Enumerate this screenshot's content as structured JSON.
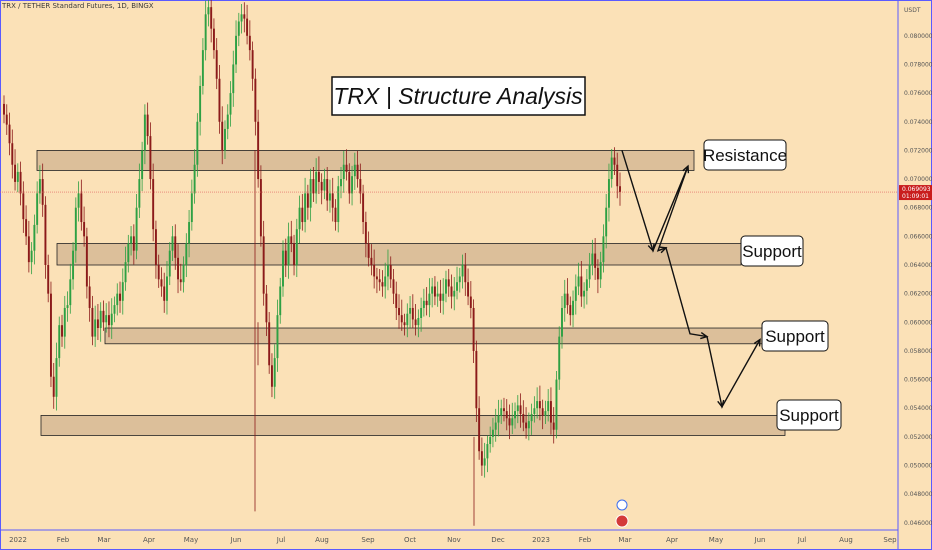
{
  "header": {
    "symbol_line": "TRX / TETHER Standard Futures, 1D, BINGX"
  },
  "colors": {
    "background": "#fbe1b7",
    "zone_fill": "#dcbf9a",
    "up_candle": "#2ea043",
    "down_candle": "#8b1a1a",
    "price_line": "#e05a5a",
    "price_badge": "#c91d1d",
    "frame": "#5a5aff"
  },
  "chart_data": {
    "type": "candlestick",
    "title": "TRX | Structure Analysis",
    "currency_label": "USDT",
    "ylim": [
      0.0455,
      0.0825
    ],
    "y_ticks": [
      "0.080000",
      "0.078000",
      "0.076000",
      "0.074000",
      "0.072000",
      "0.070000",
      "0.068000",
      "0.066000",
      "0.064000",
      "0.062000",
      "0.060000",
      "0.058000",
      "0.056000",
      "0.054000",
      "0.052000",
      "0.050000",
      "0.048000",
      "0.046000"
    ],
    "x_ticks": [
      "2022",
      "Feb",
      "Mar",
      "Apr",
      "May",
      "Jun",
      "Jul",
      "Aug",
      "Sep",
      "Oct",
      "Nov",
      "Dec",
      "2023",
      "Feb",
      "Mar",
      "Apr",
      "May",
      "Jun",
      "Jul",
      "Aug",
      "Sep"
    ],
    "current_price": {
      "value": 0.069093,
      "label": "0.069093",
      "countdown": "01:09:01"
    },
    "zones": [
      {
        "label": "Resistance",
        "from": 0.0706,
        "to": 0.072
      },
      {
        "label": "Support",
        "from": 0.064,
        "to": 0.0655
      },
      {
        "label": "Support",
        "from": 0.0585,
        "to": 0.0596
      },
      {
        "label": "Support",
        "from": 0.0521,
        "to": 0.0535
      }
    ],
    "projection_path": [
      0.072,
      0.065,
      0.0709,
      0.065,
      0.0652,
      0.0592,
      0.059,
      0.0541,
      0.0588
    ],
    "series": [
      {
        "values": [
          0.0745,
          0.0738,
          0.0725,
          0.071,
          0.0698,
          0.0705,
          0.069,
          0.0672,
          0.066,
          0.0642,
          0.065,
          0.0668,
          0.069,
          0.07,
          0.0682,
          0.064,
          0.062,
          0.0562,
          0.0548,
          0.0575,
          0.0598,
          0.059,
          0.061,
          0.0612,
          0.063,
          0.065,
          0.068,
          0.069,
          0.067,
          0.066,
          0.0625,
          0.061,
          0.059,
          0.0602,
          0.0596,
          0.0608,
          0.06,
          0.0605,
          0.0598,
          0.0606,
          0.0612,
          0.062,
          0.0615,
          0.0628,
          0.0642,
          0.0655,
          0.066,
          0.065,
          0.068,
          0.07,
          0.072,
          0.0745,
          0.073,
          0.07,
          0.0665,
          0.064,
          0.063,
          0.0625,
          0.0615,
          0.0632,
          0.065,
          0.066,
          0.0645,
          0.063,
          0.0628,
          0.064,
          0.0655,
          0.067,
          0.069,
          0.071,
          0.074,
          0.0765,
          0.079,
          0.0815,
          0.082,
          0.0805,
          0.079,
          0.077,
          0.074,
          0.072,
          0.0735,
          0.0745,
          0.076,
          0.078,
          0.08,
          0.081,
          0.0815,
          0.0812,
          0.08,
          0.079,
          0.077,
          0.074,
          0.07,
          0.066,
          0.062,
          0.06,
          0.057,
          0.0555,
          0.0575,
          0.0605,
          0.0625,
          0.065,
          0.064,
          0.066,
          0.0655,
          0.064,
          0.0665,
          0.068,
          0.067,
          0.069,
          0.068,
          0.07,
          0.069,
          0.0705,
          0.0698,
          0.0692,
          0.07,
          0.0685,
          0.069,
          0.068,
          0.067,
          0.0695,
          0.07,
          0.071,
          0.0705,
          0.069,
          0.0702,
          0.071,
          0.07,
          0.069,
          0.067,
          0.0655,
          0.0645,
          0.064,
          0.0632,
          0.063,
          0.0628,
          0.0625,
          0.0632,
          0.064,
          0.063,
          0.062,
          0.061,
          0.0605,
          0.06,
          0.0598,
          0.0606,
          0.061,
          0.0602,
          0.0598,
          0.0603,
          0.061,
          0.0615,
          0.0612,
          0.062,
          0.0625,
          0.0618,
          0.062,
          0.0615,
          0.062,
          0.063,
          0.0625,
          0.0618,
          0.0622,
          0.0628,
          0.0632,
          0.064,
          0.0628,
          0.0618,
          0.061,
          0.058,
          0.054,
          0.051,
          0.05,
          0.0505,
          0.0515,
          0.052,
          0.0525,
          0.053,
          0.0535,
          0.054,
          0.0538,
          0.0533,
          0.0528,
          0.0533,
          0.0538,
          0.0542,
          0.0536,
          0.053,
          0.0526,
          0.0531,
          0.0536,
          0.054,
          0.0545,
          0.054,
          0.0535,
          0.0538,
          0.0545,
          0.053,
          0.0525,
          0.056,
          0.059,
          0.061,
          0.062,
          0.0612,
          0.0605,
          0.0615,
          0.0625,
          0.0632,
          0.0618,
          0.0622,
          0.063,
          0.064,
          0.0648,
          0.0638,
          0.063,
          0.0642,
          0.066,
          0.068,
          0.07,
          0.0715,
          0.071,
          0.0695,
          0.0691
        ]
      }
    ]
  }
}
